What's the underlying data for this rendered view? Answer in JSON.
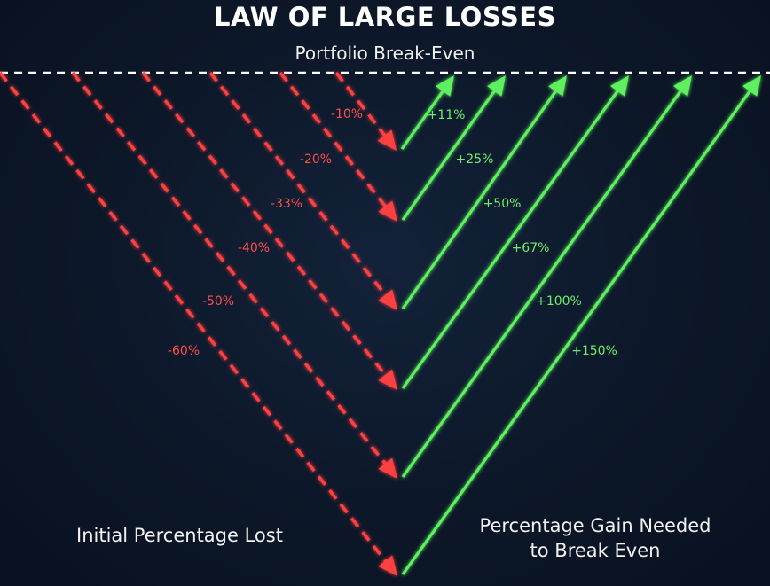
{
  "title": "LAW OF LARGE LOSSES",
  "baseline_label": "Portfolio Break-Even",
  "left_caption": "Initial Percentage Lost",
  "right_caption_line1": "Percentage Gain Needed",
  "right_caption_line2": "to Break Even",
  "colors": {
    "background": "#0c1728",
    "loss": "#ff4040",
    "gain": "#5ef05e",
    "baseline": "#ffffff"
  },
  "pairs": [
    {
      "loss_label": "-10%",
      "gain_label": "+11%"
    },
    {
      "loss_label": "-20%",
      "gain_label": "+25%"
    },
    {
      "loss_label": "-33%",
      "gain_label": "+50%"
    },
    {
      "loss_label": "-40%",
      "gain_label": "+67%"
    },
    {
      "loss_label": "-50%",
      "gain_label": "+100%"
    },
    {
      "loss_label": "-60%",
      "gain_label": "+150%"
    }
  ]
}
